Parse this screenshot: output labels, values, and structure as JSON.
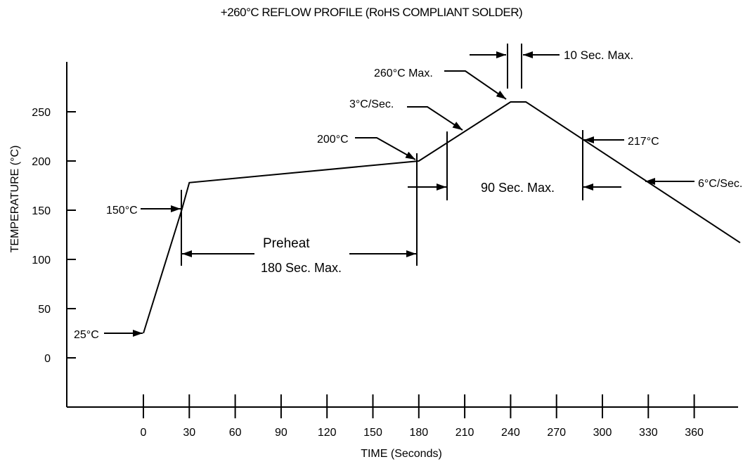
{
  "chart_data": {
    "type": "line",
    "title": "+260°C REFLOW PROFILE (RoHS COMPLIANT SOLDER)",
    "xlabel": "TIME (Seconds)",
    "ylabel": "TEMPERATURE (°C)",
    "x_ticks": [
      "0",
      "30",
      "60",
      "90",
      "120",
      "150",
      "180",
      "210",
      "240",
      "270",
      "300",
      "330",
      "360"
    ],
    "y_ticks": [
      "0",
      "50",
      "100",
      "150",
      "200",
      "250"
    ],
    "xlim": [
      -50,
      390
    ],
    "ylim": [
      -50,
      300
    ],
    "grid": false,
    "series": [
      {
        "x": [
          0,
          25,
          30,
          180,
          240,
          250,
          390
        ],
        "y": [
          25,
          150,
          178,
          200,
          260,
          260,
          117
        ]
      }
    ],
    "annotations": {
      "t25": "25°C",
      "t150": "150°C",
      "t200": "200°C",
      "ramp": "3°C/Sec.",
      "t260": "260°C Max.",
      "peak_time": "10 Sec. Max.",
      "t217": "217°C",
      "cool": "6°C/Sec.",
      "preheat_1": "Preheat",
      "preheat_2": "180 Sec. Max.",
      "above_liquidus": "90 Sec. Max."
    }
  }
}
